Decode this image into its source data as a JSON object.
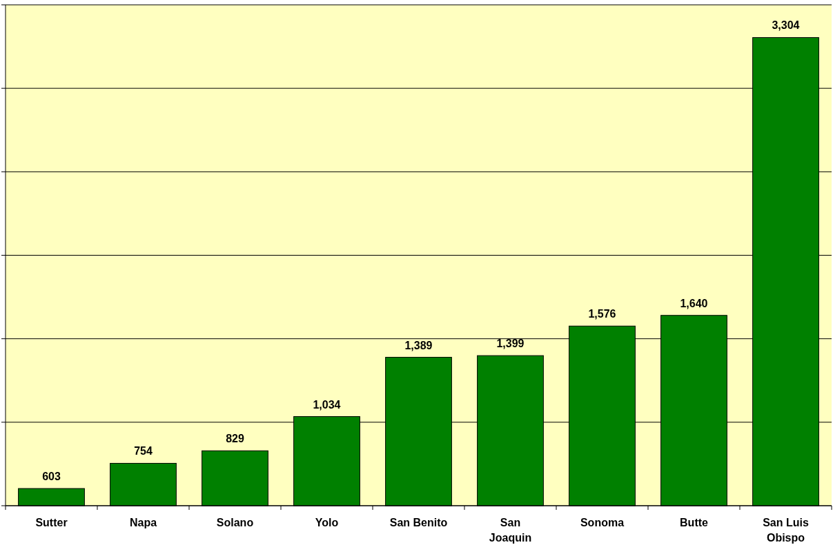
{
  "chart_data": {
    "type": "bar",
    "categories": [
      "Sutter",
      "Napa",
      "Solano",
      "Yolo",
      "San Benito",
      "San Joaquin",
      "Sonoma",
      "Butte",
      "San Luis Obispo"
    ],
    "values": [
      603,
      754,
      829,
      1034,
      1389,
      1399,
      1576,
      1640,
      3304
    ],
    "color": "#008000",
    "ylim": [
      500,
      3500
    ],
    "yticks": [
      {
        "value": 500,
        "label": null
      },
      {
        "value": 1000,
        "label": null
      },
      {
        "value": 1500,
        "label": null
      },
      {
        "value": 2000,
        "label": null
      },
      {
        "value": 2500,
        "label": null
      },
      {
        "value": 3000,
        "label": null
      },
      {
        "value": 3500,
        "label": null
      }
    ],
    "tick_labels": "x",
    "grid": "y",
    "value_labels": [
      "603",
      "754",
      "829",
      "1,034",
      "1,389",
      "1,399",
      "1,576",
      "1,640",
      "3,304"
    ]
  }
}
